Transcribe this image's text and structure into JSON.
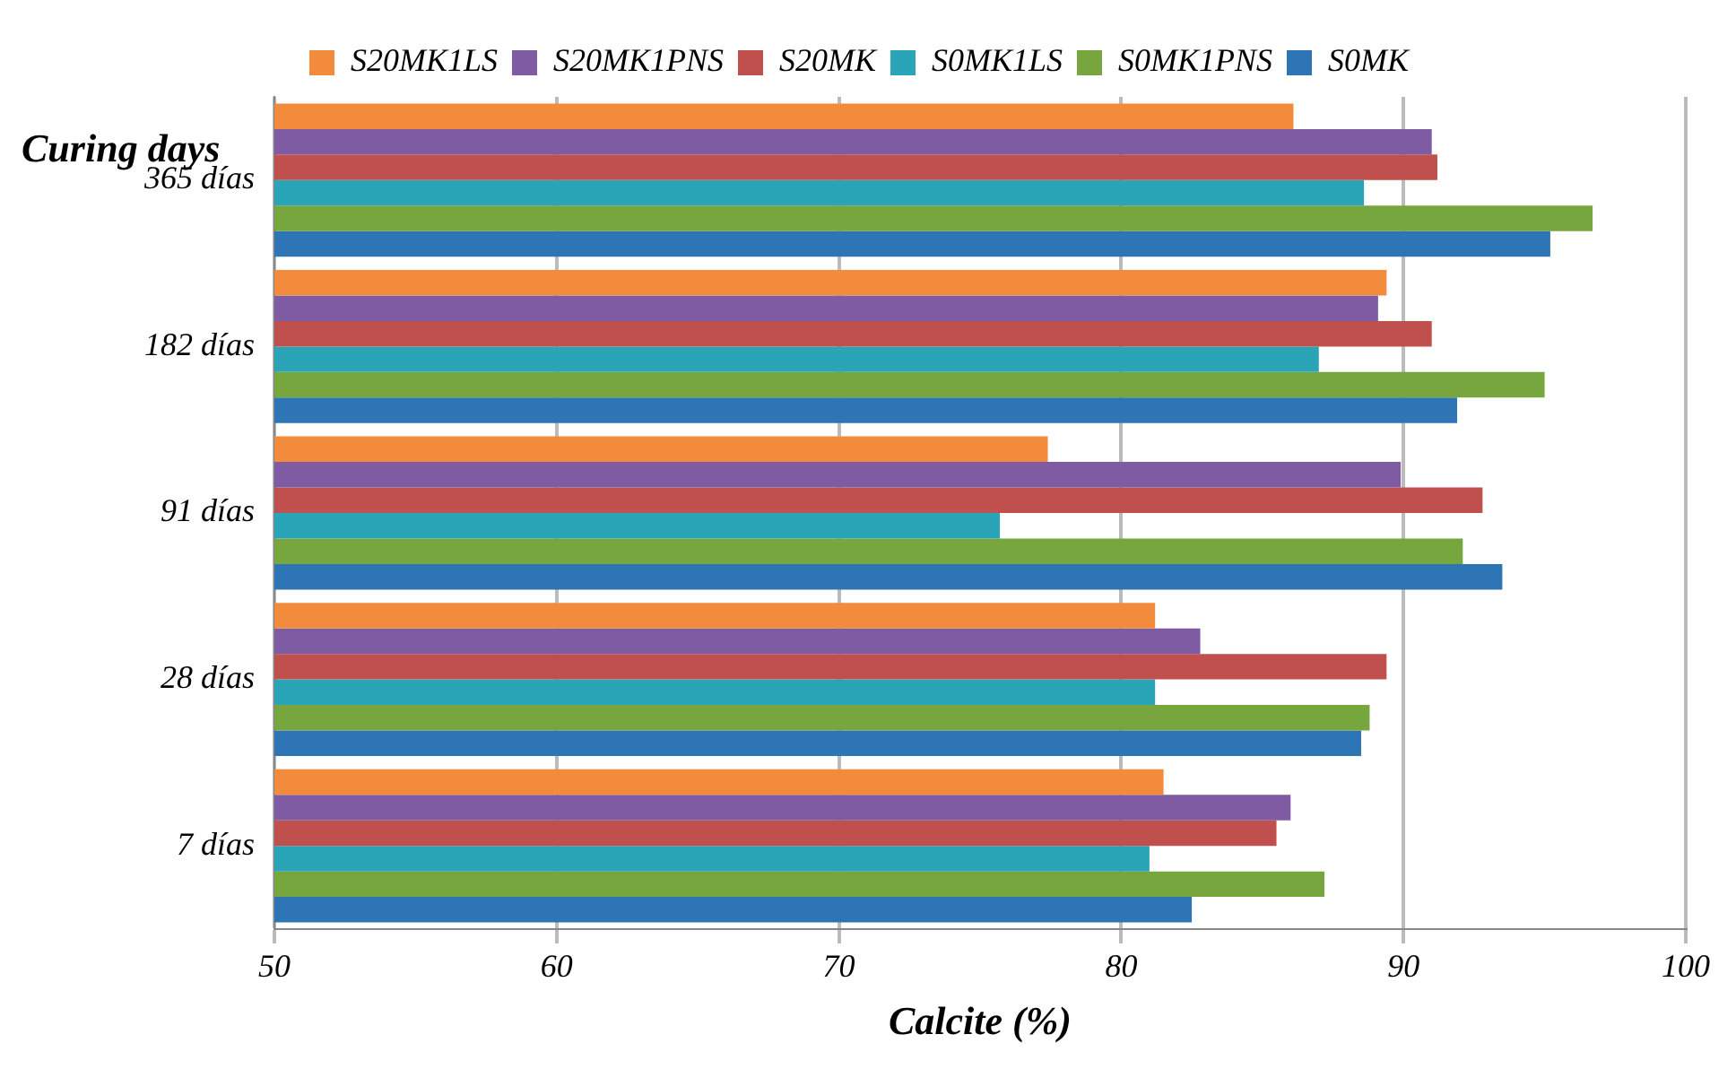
{
  "chart_data": {
    "type": "bar",
    "orientation": "horizontal",
    "xlabel": "Calcite (%)",
    "ylabel": "Curing days",
    "categories": [
      "365 días",
      "182 días",
      "91 días",
      "28 días",
      "7 días"
    ],
    "series": [
      {
        "name": "S20MK1LS",
        "color": "#f38b3c",
        "values": [
          86.1,
          89.4,
          77.4,
          81.2,
          81.5
        ]
      },
      {
        "name": "S20MK1PNS",
        "color": "#7f5ba3",
        "values": [
          91.0,
          89.1,
          89.9,
          82.8,
          86.0
        ]
      },
      {
        "name": "S20MK",
        "color": "#c0504d",
        "values": [
          91.2,
          91.0,
          92.8,
          89.4,
          85.5
        ]
      },
      {
        "name": "S0MK1LS",
        "color": "#2aa5b8",
        "values": [
          88.6,
          87.0,
          75.7,
          81.2,
          81.0
        ]
      },
      {
        "name": "S0MK1PNS",
        "color": "#77a53e",
        "values": [
          96.7,
          95.0,
          92.1,
          88.8,
          87.2
        ]
      },
      {
        "name": "S0MK",
        "color": "#2e75b6",
        "values": [
          95.2,
          91.9,
          93.5,
          88.5,
          82.5
        ]
      }
    ],
    "xlim": [
      50,
      100
    ],
    "xticks": [
      50,
      60,
      70,
      80,
      90,
      100
    ],
    "grid": "x",
    "legend": "top"
  }
}
